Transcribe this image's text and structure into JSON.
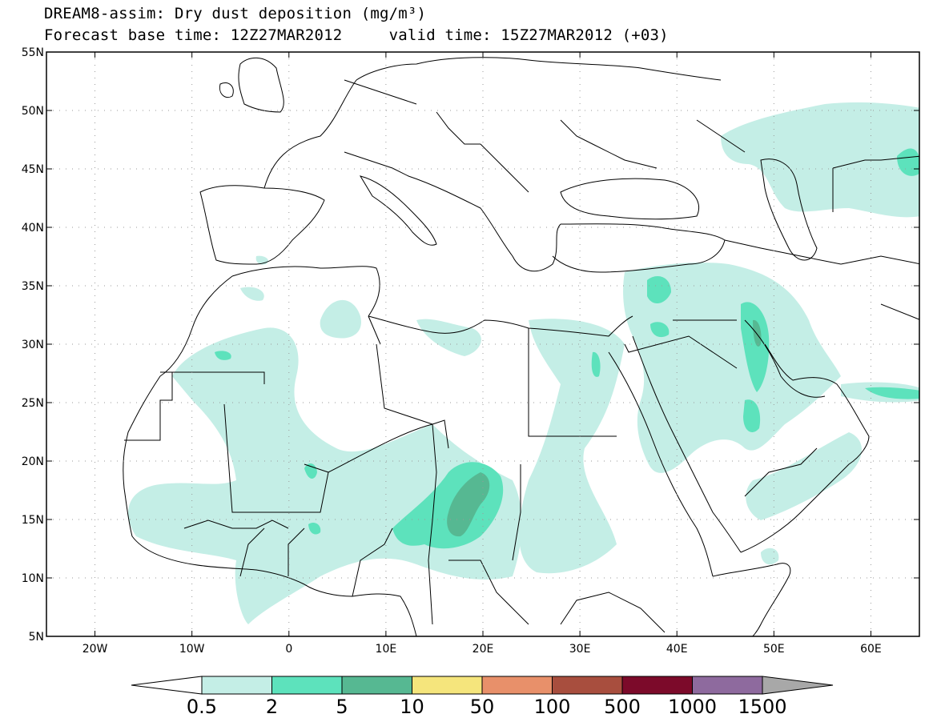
{
  "title": {
    "line1": "DREAM8-assim: Dry dust deposition (mg/m³)",
    "line2": "Forecast base time: 12Z27MAR2012     valid time: 15Z27MAR2012 (+03)"
  },
  "map": {
    "lon_range": [
      -25,
      65
    ],
    "lat_range": [
      5,
      55
    ],
    "lat_ticks": [
      {
        "value": 55,
        "label": "55N"
      },
      {
        "value": 50,
        "label": "50N"
      },
      {
        "value": 45,
        "label": "45N"
      },
      {
        "value": 40,
        "label": "40N"
      },
      {
        "value": 35,
        "label": "35N"
      },
      {
        "value": 30,
        "label": "30N"
      },
      {
        "value": 25,
        "label": "25N"
      },
      {
        "value": 20,
        "label": "20N"
      },
      {
        "value": 15,
        "label": "15N"
      },
      {
        "value": 10,
        "label": "10N"
      },
      {
        "value": 5,
        "label": "5N"
      }
    ],
    "lon_ticks": [
      {
        "value": -20,
        "label": "20W"
      },
      {
        "value": -10,
        "label": "10W"
      },
      {
        "value": 0,
        "label": "0"
      },
      {
        "value": 10,
        "label": "10E"
      },
      {
        "value": 20,
        "label": "20E"
      },
      {
        "value": 30,
        "label": "30E"
      },
      {
        "value": 40,
        "label": "40E"
      },
      {
        "value": 50,
        "label": "50E"
      },
      {
        "value": 60,
        "label": "60E"
      }
    ],
    "gridlines": "dotted"
  },
  "colorbar": {
    "levels": [
      "0.5",
      "2",
      "5",
      "10",
      "50",
      "100",
      "500",
      "1000",
      "1500"
    ],
    "colors": [
      "#c4eee6",
      "#5de2bc",
      "#56b892",
      "#f5e57c",
      "#e8906a",
      "#a84e3e",
      "#7c0a2a",
      "#8e6a9e",
      "#a8a8a8"
    ],
    "under_color": "#ffffff"
  }
}
